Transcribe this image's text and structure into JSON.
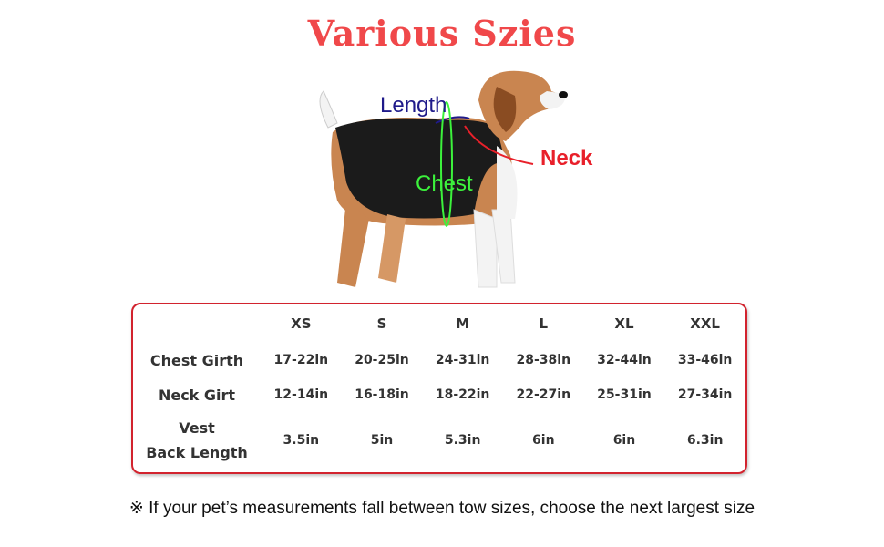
{
  "title": "Various Szies",
  "diagram_labels": {
    "length": "Length",
    "neck": "Neck",
    "chest": "Chest"
  },
  "colors": {
    "title": "#f0484a",
    "length": "#1f1a8a",
    "neck": "#e8202a",
    "chest": "#3cf23c",
    "border": "#d2232e"
  },
  "table": {
    "columns": [
      "XS",
      "S",
      "M",
      "L",
      "XL",
      "XXL"
    ],
    "rows": [
      {
        "label": "Chest Girth",
        "label2": "",
        "values": [
          "17-22in",
          "20-25in",
          "24-31in",
          "28-38in",
          "32-44in",
          "33-46in"
        ]
      },
      {
        "label": "Neck Girt",
        "label2": "",
        "values": [
          "12-14in",
          "16-18in",
          "18-22in",
          "22-27in",
          "25-31in",
          "27-34in"
        ]
      },
      {
        "label": "Vest",
        "label2": "Back Length",
        "values": [
          "3.5in",
          "5in",
          "5.3in",
          "6in",
          "6in",
          "6.3in"
        ]
      }
    ]
  },
  "note": "※  If your pet’s measurements fall between tow sizes, choose the next largest size"
}
